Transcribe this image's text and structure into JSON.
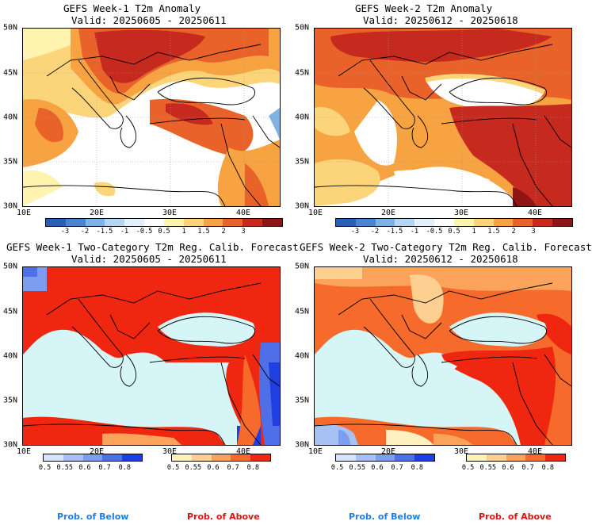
{
  "panels": [
    {
      "title": "GEFS Week-1 T2m Anomaly",
      "valid": "Valid: 20250605 - 20250611"
    },
    {
      "title": "GEFS Week-2 T2m Anomaly",
      "valid": "Valid: 20250612 - 20250618"
    },
    {
      "title": "GEFS Week-1 Two-Category T2m Reg. Calib. Forecast",
      "valid": "Valid: 20250605 - 20250611"
    },
    {
      "title": "GEFS Week-2 Two-Category T2m Reg. Calib. Forecast",
      "valid": "Valid: 20250612 - 20250618"
    }
  ],
  "lat_labels": [
    "50N",
    "45N",
    "40N",
    "35N",
    "30N"
  ],
  "lon_labels": [
    "10E",
    "20E",
    "30E",
    "40E"
  ],
  "anomaly_colorbar": {
    "labels": [
      "-3",
      "-2",
      "-1.5",
      "-1",
      "-0.5",
      "0.5",
      "1",
      "1.5",
      "2",
      "3"
    ],
    "colors": [
      "#2a5fb8",
      "#4a86d0",
      "#7fb3e6",
      "#b5d6f2",
      "#e3f0fb",
      "#ffffff",
      "#fff3b0",
      "#fcd57a",
      "#f7a341",
      "#e8622a",
      "#c62a1f",
      "#8f1515"
    ]
  },
  "prob_below_colorbar": {
    "labels": [
      "0.5",
      "0.55",
      "0.6",
      "0.7",
      "0.8"
    ],
    "colors": [
      "#d5e3fb",
      "#a7c1f4",
      "#7d9ef0",
      "#4f6fe9",
      "#1f3fe0"
    ]
  },
  "prob_above_colorbar": {
    "labels": [
      "0.5",
      "0.55",
      "0.6",
      "0.7",
      "0.8"
    ],
    "colors": [
      "#fff0c0",
      "#fdcf90",
      "#fba35a",
      "#f66a2b",
      "#f02710"
    ]
  },
  "prob_below_label": "Prob. of Below",
  "prob_above_label": "Prob. of Above",
  "colors": {
    "water": "#d6f5f7",
    "white": "#ffffff",
    "below_text": "#1f7fe0",
    "above_text": "#e01212"
  }
}
